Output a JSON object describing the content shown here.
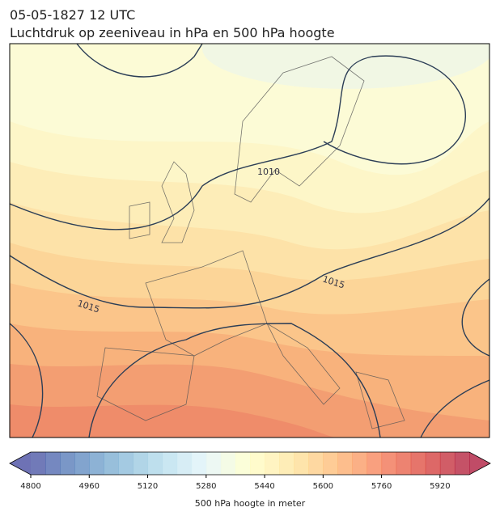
{
  "header": {
    "date": "05-05-1827 12 UTC",
    "title": "Luchtdruk op zeeniveau in hPa en 500 hPa hoogte"
  },
  "map": {
    "contour_labels": [
      "1010",
      "1015",
      "1015"
    ]
  },
  "colorbar": {
    "lim": [
      4800,
      6000
    ],
    "ticks": [
      4800,
      4960,
      5120,
      5280,
      5440,
      5600,
      5760,
      5920
    ],
    "label": "500 hPa hoogte in meter"
  }
}
